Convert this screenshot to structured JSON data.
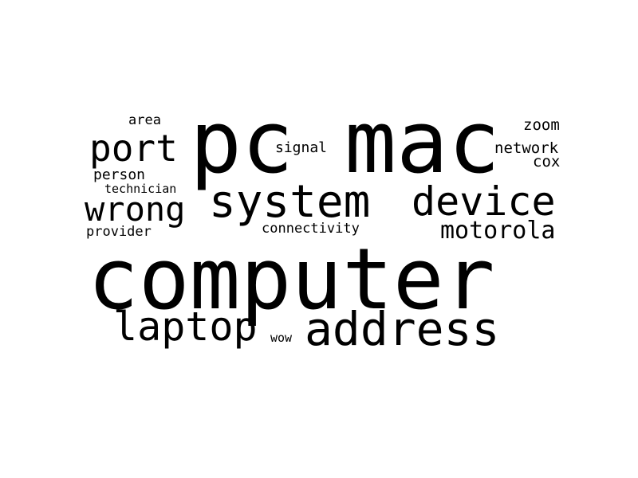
{
  "word_cloud": {
    "text_color": "#000000",
    "background_color": "#ffffff",
    "words": {
      "pc": "pc",
      "mac": "mac",
      "computer": "computer",
      "system": "system",
      "device": "device",
      "address": "address",
      "laptop": "laptop",
      "port": "port",
      "wrong": "wrong",
      "motorola": "motorola",
      "area": "area",
      "signal": "signal",
      "zoom": "zoom",
      "network": "network",
      "cox": "cox",
      "person": "person",
      "technician": "technician",
      "provider": "provider",
      "connectivity": "connectivity",
      "wow": "wow"
    }
  }
}
